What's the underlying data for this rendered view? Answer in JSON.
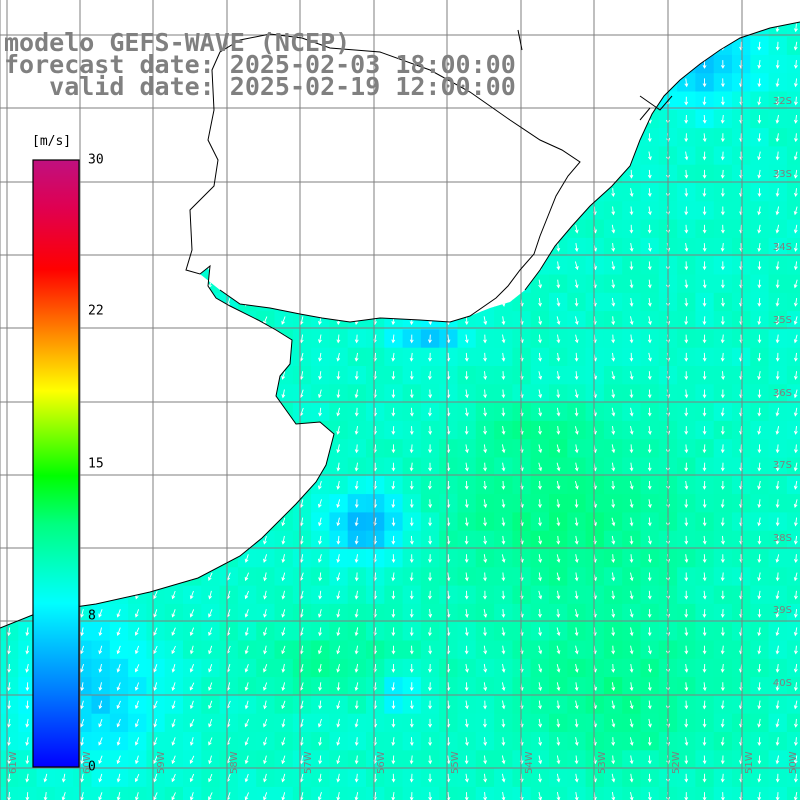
{
  "title": {
    "line1": "modelo GEFS-WAVE (NCEP)",
    "line2": "forecast date: 2025-02-03 18:00:00",
    "line3": "   valid date: 2025-02-19 12:00:00"
  },
  "colorbar": {
    "unit": "[m/s]",
    "ticks": [
      "30",
      "22",
      "15",
      "8",
      "0"
    ],
    "tick_values": [
      30,
      22,
      15,
      8,
      0
    ],
    "min": 0,
    "max": 30,
    "colors": [
      "#0000ff",
      "#00b4ff",
      "#00ffff",
      "#00ff00",
      "#ffff00",
      "#ff8000",
      "#ff0000",
      "#c0107f"
    ]
  },
  "map": {
    "lat_labels": [
      "32S",
      "33S",
      "34S",
      "35S",
      "36S",
      "37S",
      "38S",
      "39S",
      "40S"
    ],
    "lon_labels": [
      "61W",
      "60W",
      "59W",
      "58W",
      "57W",
      "56W",
      "55W",
      "54W",
      "53W",
      "52W",
      "51W",
      "50W"
    ],
    "land_color": "#ffffff",
    "grid_color": "#7f7f7f",
    "arrow_color": "#ffffff",
    "coast_color": "#000000"
  }
}
